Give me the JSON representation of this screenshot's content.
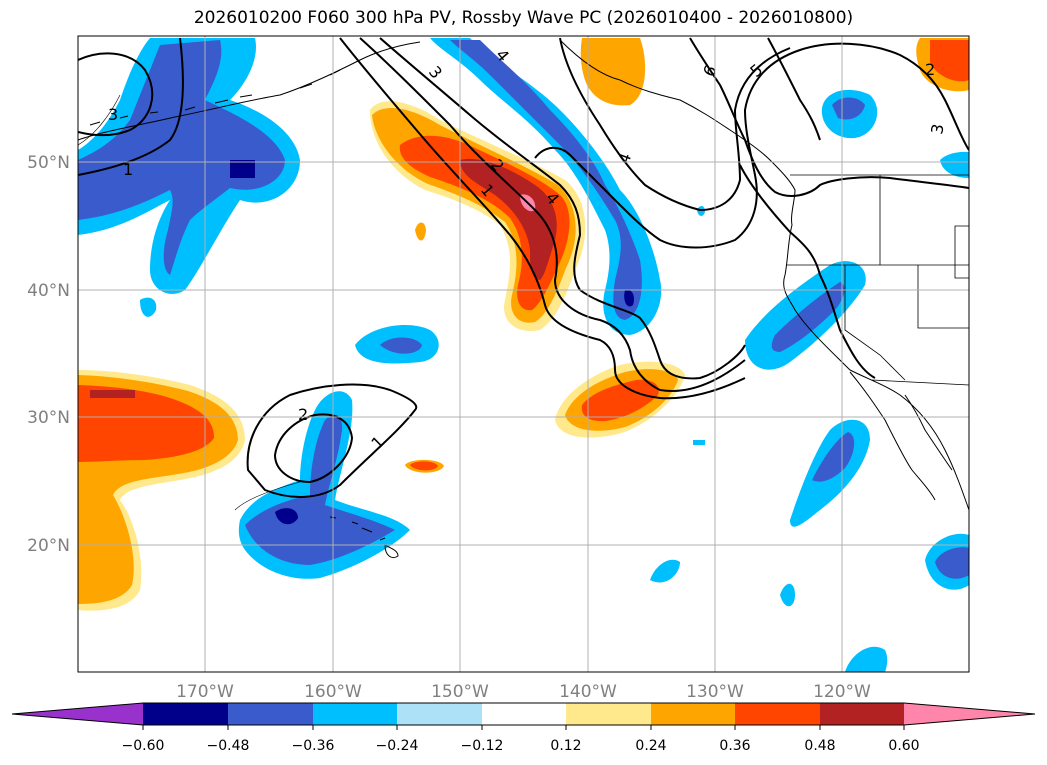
{
  "title": "2026010200 F060 300 hPa PV, Rossby Wave PC (2026010400 - 2026010800)",
  "lon_labels": [
    "170°W",
    "160°W",
    "150°W",
    "140°W",
    "130°W",
    "120°W"
  ],
  "lat_labels": [
    "50°N",
    "40°N",
    "30°N",
    "20°N"
  ],
  "colorbar": {
    "tick_labels": [
      "−0.60",
      "−0.48",
      "−0.36",
      "−0.24",
      "−0.12",
      "0.12",
      "0.24",
      "0.36",
      "0.48",
      "0.60"
    ],
    "colors": [
      "#9932CC",
      "#00008B",
      "#3A5BCC",
      "#00BFFF",
      "#ADE1F7",
      "#FFFFFF",
      "#FFE98C",
      "#FFA500",
      "#FF4500",
      "#B22222",
      "#FF85AA"
    ]
  },
  "contour_labels": [
    "3",
    "1",
    "4",
    "2",
    "1",
    "4",
    "6",
    "5",
    "4",
    "3",
    "2",
    "1",
    "2",
    "3"
  ]
}
